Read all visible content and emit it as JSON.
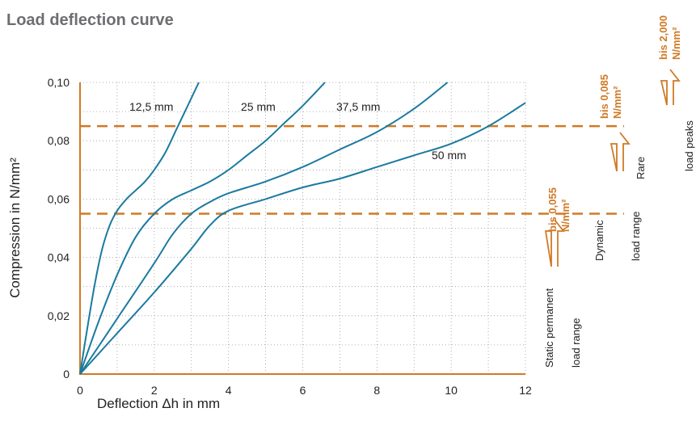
{
  "title": "Load deflection curve",
  "colors": {
    "curve": "#1b7aa0",
    "orange": "#cf7a25",
    "axis": "#cf7a25",
    "grid": "#9a9a9a",
    "text": "#222222",
    "title": "#6d6e71"
  },
  "chart_data": {
    "type": "line",
    "title": "Load deflection curve",
    "xlabel": "Deflection Δh in mm",
    "ylabel": "Compression in N/mm²",
    "xlim": [
      0,
      12
    ],
    "ylim": [
      0,
      0.1
    ],
    "grid": true,
    "x_ticks": [
      "0",
      "2",
      "4",
      "6",
      "8",
      "10",
      "12"
    ],
    "y_ticks": [
      "0",
      "0,02",
      "0,04",
      "0,06",
      "0,08",
      "0,10"
    ],
    "series": [
      {
        "name": "12,5 mm",
        "x": [
          0,
          0.2,
          0.4,
          0.6,
          0.8,
          1.0,
          1.25,
          1.5,
          1.75,
          2.0,
          2.3,
          2.6,
          2.9,
          3.2
        ],
        "y": [
          0,
          0.016,
          0.031,
          0.043,
          0.051,
          0.056,
          0.06,
          0.063,
          0.066,
          0.07,
          0.076,
          0.084,
          0.092,
          0.1
        ]
      },
      {
        "name": "25 mm",
        "x": [
          0,
          0.5,
          1.0,
          1.5,
          2.0,
          2.5,
          3.0,
          3.5,
          4.0,
          4.5,
          5.0,
          5.5,
          6.0,
          6.6
        ],
        "y": [
          0,
          0.018,
          0.034,
          0.047,
          0.055,
          0.06,
          0.063,
          0.066,
          0.07,
          0.075,
          0.08,
          0.086,
          0.092,
          0.1
        ]
      },
      {
        "name": "37,5 mm",
        "x": [
          0,
          1,
          2,
          2.5,
          3,
          3.5,
          4,
          5,
          6,
          7,
          8,
          9,
          9.9
        ],
        "y": [
          0,
          0.019,
          0.038,
          0.048,
          0.055,
          0.059,
          0.062,
          0.066,
          0.071,
          0.077,
          0.083,
          0.091,
          0.1
        ]
      },
      {
        "name": "50 mm",
        "x": [
          0,
          1,
          2,
          3,
          3.5,
          4,
          5,
          6,
          7,
          8,
          9,
          10,
          11,
          12
        ],
        "y": [
          0,
          0.014,
          0.028,
          0.043,
          0.051,
          0.056,
          0.06,
          0.064,
          0.067,
          0.071,
          0.075,
          0.079,
          0.085,
          0.093
        ]
      }
    ],
    "reference_lines": [
      {
        "y": 0.055,
        "label": "bis 0,055 N/mm²"
      },
      {
        "y": 0.085,
        "label": "bis 0,085 N/mm²"
      }
    ],
    "load_ranges": [
      {
        "line1": "Static permanent",
        "line2": "load range"
      },
      {
        "line1": "Dynamic",
        "line2": "load range"
      },
      {
        "line1": "Rare",
        "line2": "load peaks"
      }
    ],
    "top_label": "bis 2,000 N/mm²"
  }
}
